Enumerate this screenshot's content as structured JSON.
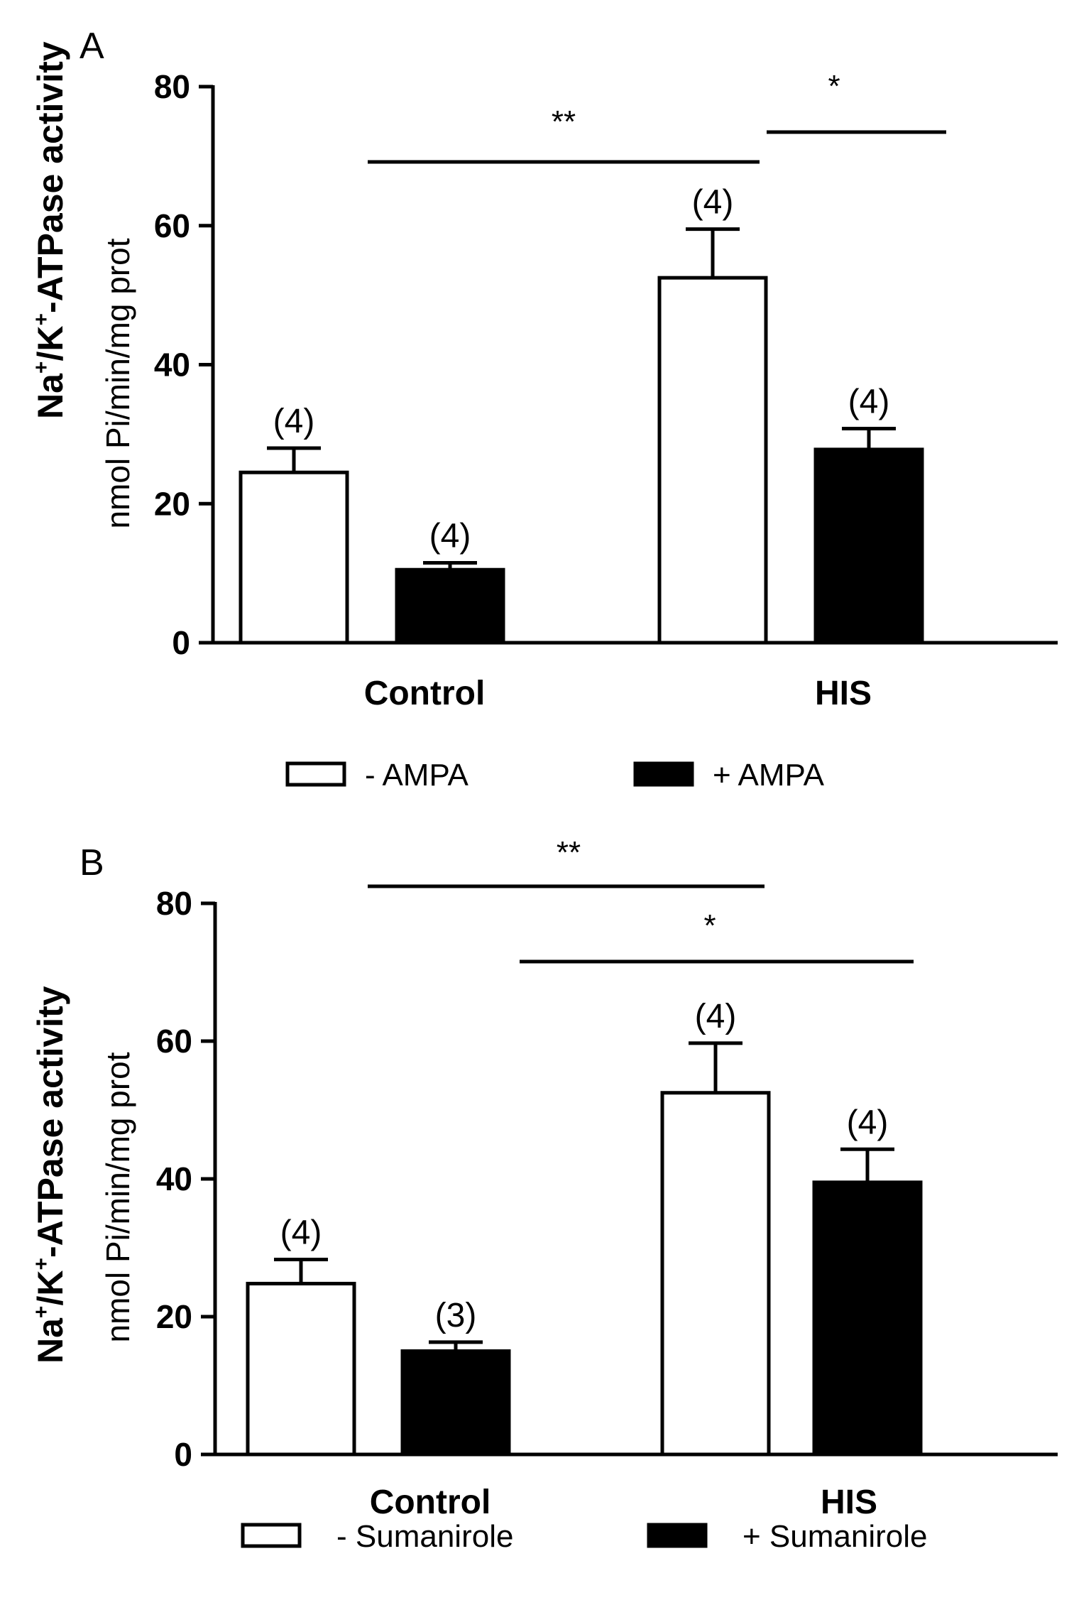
{
  "chart_data": [
    {
      "type": "bar",
      "panel": "A",
      "title": "",
      "ylabel": "Na+/K+-ATPase activity",
      "ylabel_sub": "nmol Pi/min/mg prot",
      "categories": [
        "Control",
        "HIS"
      ],
      "ylim": [
        0,
        80
      ],
      "yticks": [
        0,
        20,
        40,
        60,
        80
      ],
      "series": [
        {
          "name": "- AMPA",
          "fill": "#ffffff",
          "values": [
            24.5,
            52.5
          ],
          "errors": [
            3.5,
            7.0
          ],
          "n": [
            "(4)",
            "(4)"
          ]
        },
        {
          "name": "+ AMPA",
          "fill": "#000000",
          "values": [
            10.5,
            27.8
          ],
          "errors": [
            1.0,
            3.0
          ],
          "n": [
            "(4)",
            "(4)"
          ]
        }
      ],
      "significance": [
        {
          "label": "**",
          "from": [
            0,
            0
          ],
          "to": [
            1,
            0
          ]
        },
        {
          "label": "*",
          "from": [
            1,
            0
          ],
          "to": [
            1,
            1
          ]
        }
      ],
      "legend": {
        "items": [
          "- AMPA",
          "+ AMPA"
        ],
        "placement": "bottom"
      }
    },
    {
      "type": "bar",
      "panel": "B",
      "title": "",
      "ylabel": "Na+/K+-ATPase activity",
      "ylabel_sub": "nmol Pi/min/mg prot",
      "categories": [
        "Control",
        "HIS"
      ],
      "ylim": [
        0,
        80
      ],
      "yticks": [
        0,
        20,
        40,
        60,
        80
      ],
      "series": [
        {
          "name": "- Sumanirole",
          "fill": "#ffffff",
          "values": [
            24.8,
            52.5
          ],
          "errors": [
            3.5,
            7.2
          ],
          "n": [
            "(4)",
            "(4)"
          ]
        },
        {
          "name": "+ Sumanirole",
          "fill": "#000000",
          "values": [
            15.0,
            39.5
          ],
          "errors": [
            1.3,
            4.8
          ],
          "n": [
            "(3)",
            "(4)"
          ]
        }
      ],
      "significance": [
        {
          "label": "**",
          "from": [
            0,
            0
          ],
          "to": [
            1,
            0
          ]
        },
        {
          "label": "*",
          "from": [
            0,
            1
          ],
          "to": [
            1,
            1
          ]
        }
      ],
      "legend": {
        "items": [
          "- Sumanirole",
          "+ Sumanirole"
        ],
        "placement": "bottom"
      }
    }
  ]
}
